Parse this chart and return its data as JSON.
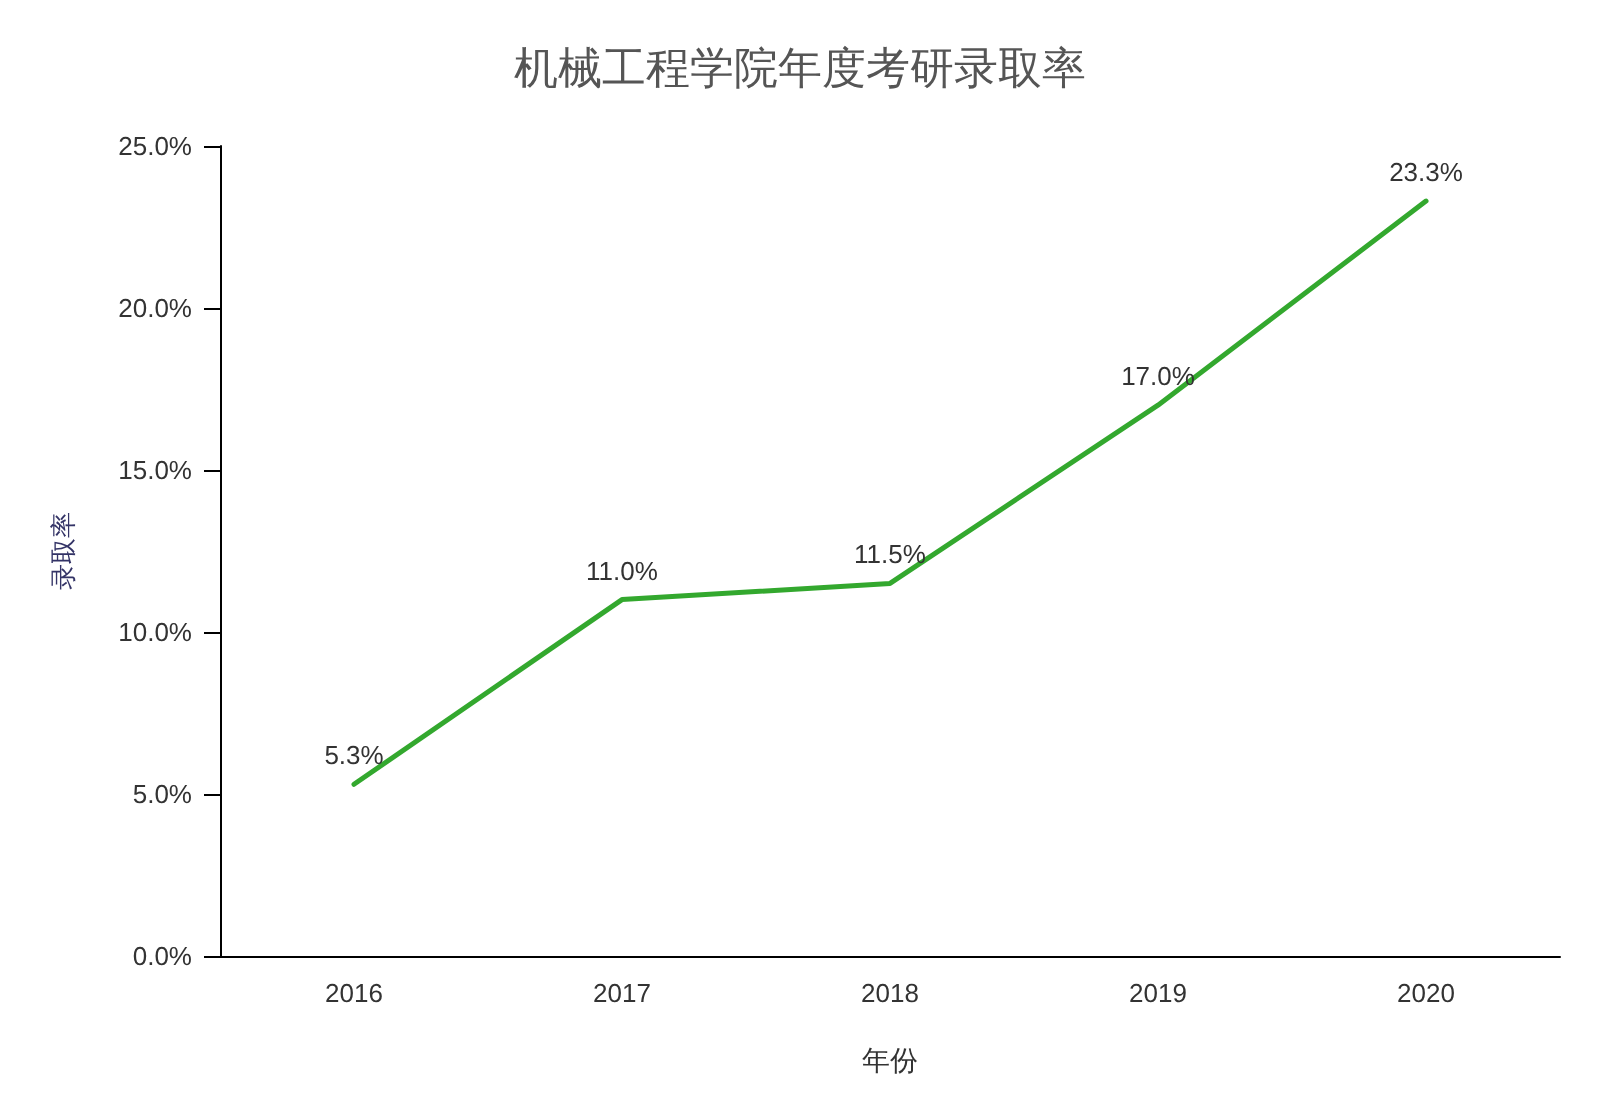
{
  "chart_data": {
    "type": "line",
    "title": "机械工程学院年度考研录取率",
    "xlabel": "年份",
    "ylabel": "录取率",
    "categories": [
      "2016",
      "2017",
      "2018",
      "2019",
      "2020"
    ],
    "series": [
      {
        "color": "#33a82e",
        "values": [
          5.3,
          11.0,
          11.5,
          17.0,
          23.3
        ],
        "value_labels": [
          "5.3%",
          "11.0%",
          "11.5%",
          "17.0%",
          "23.3%"
        ]
      }
    ],
    "ylim": [
      0,
      25
    ],
    "yticks": [
      {
        "value": 0,
        "label": "0.0%"
      },
      {
        "value": 5,
        "label": "5.0%"
      },
      {
        "value": 10,
        "label": "10.0%"
      },
      {
        "value": 15,
        "label": "15.0%"
      },
      {
        "value": 20,
        "label": "20.0%"
      },
      {
        "value": 25,
        "label": "25.0%"
      }
    ],
    "grid": false,
    "marker": "none",
    "line_style": "solid"
  }
}
